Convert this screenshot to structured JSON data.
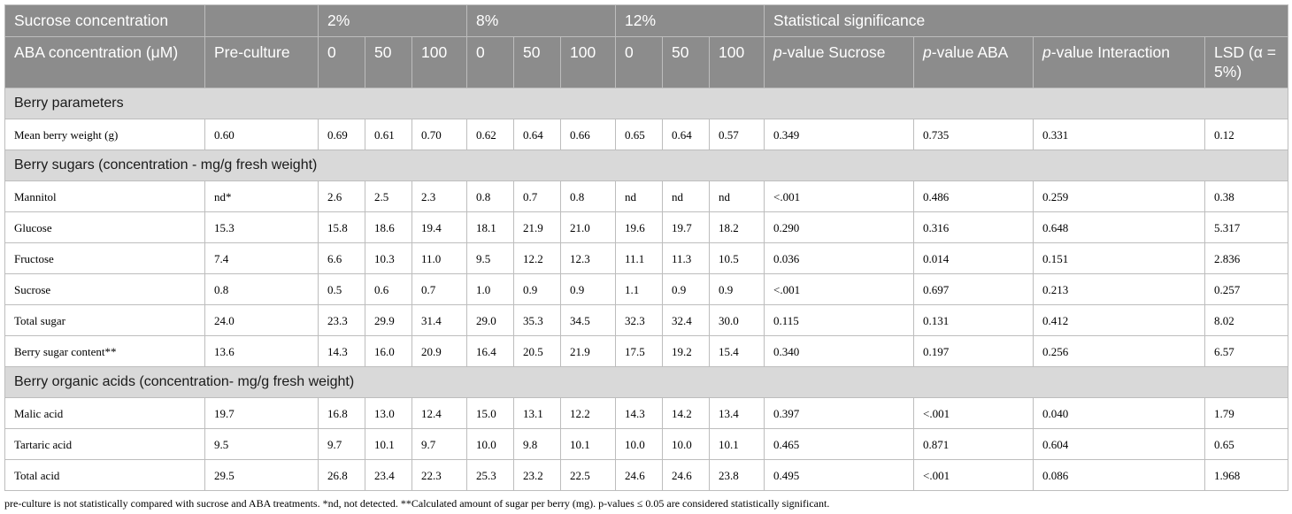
{
  "header": {
    "row1": {
      "sucrose_label": "Sucrose concentration",
      "groups": [
        "2%",
        "8%",
        "12%"
      ],
      "stats_label": "Statistical significance"
    },
    "row2": {
      "aba_label": "ABA concentration (μM)",
      "preculture": "Pre-culture",
      "aba_levels": [
        "0",
        "50",
        "100",
        "0",
        "50",
        "100",
        "0",
        "50",
        "100"
      ],
      "p_prefix": "p",
      "p_sucrose": "-value Sucrose",
      "p_aba": "-value ABA",
      "p_interaction": "-value Interaction",
      "lsd": "LSD (α = 5%)"
    }
  },
  "sections": [
    {
      "title": "Berry parameters",
      "rows": [
        {
          "name": "Mean berry weight (g)",
          "values": [
            "0.60",
            "0.69",
            "0.61",
            "0.70",
            "0.62",
            "0.64",
            "0.66",
            "0.65",
            "0.64",
            "0.57",
            "0.349",
            "0.735",
            "0.331",
            "0.12"
          ]
        }
      ]
    },
    {
      "title": "Berry sugars (concentration - mg/g fresh weight)",
      "rows": [
        {
          "name": "Mannitol",
          "values": [
            "nd*",
            "2.6",
            "2.5",
            "2.3",
            "0.8",
            "0.7",
            "0.8",
            "nd",
            "nd",
            "nd",
            "<.001",
            "0.486",
            "0.259",
            "0.38"
          ]
        },
        {
          "name": "Glucose",
          "values": [
            "15.3",
            "15.8",
            "18.6",
            "19.4",
            "18.1",
            "21.9",
            "21.0",
            "19.6",
            "19.7",
            "18.2",
            "0.290",
            "0.316",
            "0.648",
            "5.317"
          ]
        },
        {
          "name": "Fructose",
          "values": [
            "7.4",
            "6.6",
            "10.3",
            "11.0",
            "9.5",
            "12.2",
            "12.3",
            "11.1",
            "11.3",
            "10.5",
            "0.036",
            "0.014",
            "0.151",
            "2.836"
          ]
        },
        {
          "name": "Sucrose",
          "values": [
            "0.8",
            "0.5",
            "0.6",
            "0.7",
            "1.0",
            "0.9",
            "0.9",
            "1.1",
            "0.9",
            "0.9",
            "<.001",
            "0.697",
            "0.213",
            "0.257"
          ]
        },
        {
          "name": "Total sugar",
          "values": [
            "24.0",
            "23.3",
            "29.9",
            "31.4",
            "29.0",
            "35.3",
            "34.5",
            "32.3",
            "32.4",
            "30.0",
            "0.115",
            "0.131",
            "0.412",
            "8.02"
          ]
        },
        {
          "name": "Berry sugar content**",
          "values": [
            "13.6",
            "14.3",
            "16.0",
            "20.9",
            "16.4",
            "20.5",
            "21.9",
            "17.5",
            "19.2",
            "15.4",
            "0.340",
            "0.197",
            "0.256",
            "6.57"
          ]
        }
      ]
    },
    {
      "title": "Berry organic acids (concentration- mg/g fresh weight)",
      "rows": [
        {
          "name": "Malic acid",
          "values": [
            "19.7",
            "16.8",
            "13.0",
            "12.4",
            "15.0",
            "13.1",
            "12.2",
            "14.3",
            "14.2",
            "13.4",
            "0.397",
            "<.001",
            "0.040",
            "1.79"
          ]
        },
        {
          "name": "Tartaric acid",
          "values": [
            "9.5",
            "9.7",
            "10.1",
            "9.7",
            "10.0",
            "9.8",
            "10.1",
            "10.0",
            "10.0",
            "10.1",
            "0.465",
            "0.871",
            "0.604",
            "0.65"
          ]
        },
        {
          "name": "Total acid",
          "values": [
            "29.5",
            "26.8",
            "23.4",
            "22.3",
            "25.3",
            "23.2",
            "22.5",
            "24.6",
            "24.6",
            "23.8",
            "0.495",
            "<.001",
            "0.086",
            "1.968"
          ]
        }
      ]
    }
  ],
  "footnote": "pre-culture is not statistically compared with sucrose and ABA treatments. *nd, not detected. **Calculated amount of sugar per berry (mg). p-values ≤ 0.05 are considered statistically significant.",
  "colors": {
    "header_bg": "#8c8c8c",
    "section_bg": "#d9d9d9",
    "border": "#bdbdbd"
  }
}
